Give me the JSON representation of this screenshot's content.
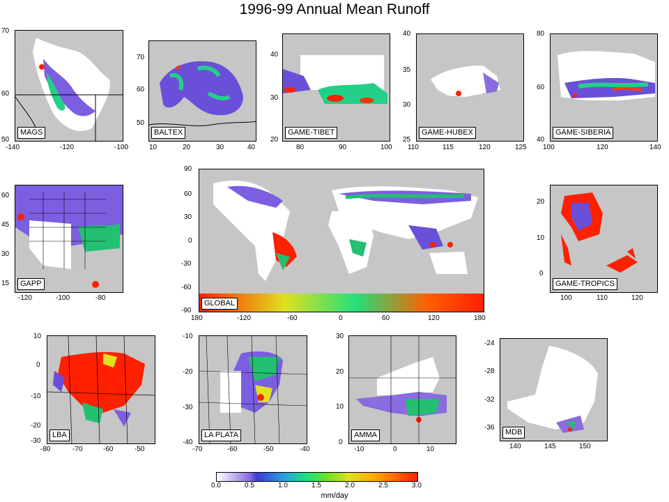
{
  "title": "1996-99 Annual Mean Runoff",
  "panels": {
    "mags": {
      "label": "MAGS",
      "y_ticks": [
        "70",
        "60",
        "50"
      ],
      "x_ticks": [
        "-140",
        "-120",
        "-100"
      ]
    },
    "baltex": {
      "label": "BALTEX",
      "y_ticks": [
        "70",
        "60",
        "50"
      ],
      "x_ticks": [
        "10",
        "20",
        "30",
        "40"
      ]
    },
    "tibet": {
      "label": "GAME-TIBET",
      "y_ticks": [
        "40",
        "30",
        "20"
      ],
      "x_ticks": [
        "80",
        "90",
        "100"
      ]
    },
    "hubex": {
      "label": "GAME-HUBEX",
      "y_ticks": [
        "40",
        "35",
        "30",
        "25"
      ],
      "x_ticks": [
        "110",
        "115",
        "120",
        "125"
      ]
    },
    "siberia": {
      "label": "GAME-SIBERIA",
      "y_ticks": [
        "80",
        "60",
        "40"
      ],
      "x_ticks": [
        "100",
        "120",
        "140"
      ]
    },
    "gapp": {
      "label": "GAPP",
      "y_ticks": [
        "60",
        "45",
        "30",
        "15"
      ],
      "x_ticks": [
        "-120",
        "-100",
        "-80"
      ]
    },
    "global": {
      "label": "GLOBAL",
      "y_ticks": [
        "90",
        "60",
        "30",
        "0",
        "-30",
        "-60",
        "-90"
      ],
      "x_ticks": [
        "180",
        "-120",
        "-60",
        "0",
        "60",
        "120",
        "180"
      ]
    },
    "tropics": {
      "label": "GAME-TROPICS",
      "y_ticks": [
        "20",
        "10",
        "0"
      ],
      "x_ticks": [
        "100",
        "110",
        "120"
      ]
    },
    "lba": {
      "label": "LBA",
      "y_ticks": [
        "10",
        "0",
        "-10",
        "-20",
        "-30"
      ],
      "x_ticks": [
        "-80",
        "-70",
        "-60",
        "-50"
      ]
    },
    "laplata": {
      "label": "LA PLATA",
      "y_ticks": [
        "-10",
        "-20",
        "-30",
        "-40"
      ],
      "x_ticks": [
        "-70",
        "-60",
        "-50",
        "-40"
      ]
    },
    "amma": {
      "label": "AMMA",
      "y_ticks": [
        "30",
        "20",
        "10",
        "0"
      ],
      "x_ticks": [
        "-10",
        "0",
        "10"
      ]
    },
    "mdb": {
      "label": "MDB",
      "y_ticks": [
        "-24",
        "-28",
        "-32",
        "-36"
      ],
      "x_ticks": [
        "140",
        "145",
        "150"
      ]
    }
  },
  "colorbar": {
    "ticks": [
      "0.0",
      "0.5",
      "1.0",
      "1.5",
      "2.0",
      "2.5",
      "3.0"
    ],
    "unit": "mm/day",
    "colors": [
      "#ffffff",
      "#8a6be0",
      "#3b3bd8",
      "#2a9ee0",
      "#22e07a",
      "#e0e020",
      "#ffa000",
      "#ff2000"
    ]
  }
}
